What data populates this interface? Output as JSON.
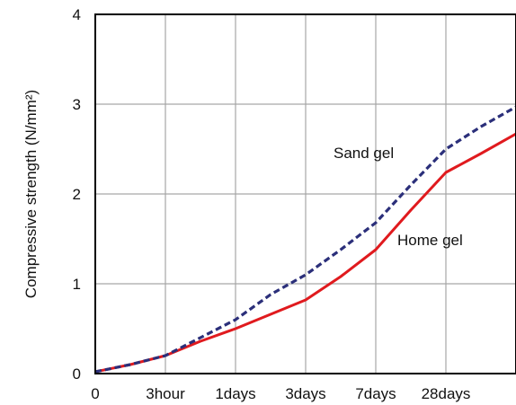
{
  "chart_data": {
    "type": "line",
    "title": "",
    "xlabel": "",
    "ylabel": "Compressive strength (N/mm²)",
    "x_ticks": [
      "0",
      "3hour",
      "1days",
      "3days",
      "7days",
      "28days",
      ""
    ],
    "y_ticks": [
      "0",
      "1",
      "2",
      "3",
      "4"
    ],
    "ylim": [
      0,
      4
    ],
    "grid": true,
    "series": [
      {
        "name": "Sand gel",
        "color": "#2b2f7a",
        "style": "dashed",
        "points": [
          {
            "x": 0,
            "y": 0.02
          },
          {
            "x": 0.5,
            "y": 0.1
          },
          {
            "x": 1,
            "y": 0.2
          },
          {
            "x": 1.5,
            "y": 0.4
          },
          {
            "x": 2,
            "y": 0.6
          },
          {
            "x": 2.5,
            "y": 0.88
          },
          {
            "x": 3,
            "y": 1.1
          },
          {
            "x": 3.5,
            "y": 1.38
          },
          {
            "x": 4,
            "y": 1.68
          },
          {
            "x": 4.5,
            "y": 2.1
          },
          {
            "x": 5,
            "y": 2.5
          },
          {
            "x": 5.5,
            "y": 2.75
          },
          {
            "x": 6,
            "y": 2.97
          }
        ]
      },
      {
        "name": "Home gel",
        "color": "#e01a1e",
        "style": "solid",
        "points": [
          {
            "x": 0,
            "y": 0.02
          },
          {
            "x": 0.5,
            "y": 0.1
          },
          {
            "x": 1,
            "y": 0.2
          },
          {
            "x": 1.5,
            "y": 0.36
          },
          {
            "x": 2,
            "y": 0.5
          },
          {
            "x": 2.5,
            "y": 0.66
          },
          {
            "x": 3,
            "y": 0.82
          },
          {
            "x": 3.5,
            "y": 1.08
          },
          {
            "x": 4,
            "y": 1.38
          },
          {
            "x": 4.5,
            "y": 1.82
          },
          {
            "x": 5,
            "y": 2.24
          },
          {
            "x": 5.5,
            "y": 2.45
          },
          {
            "x": 6,
            "y": 2.67
          }
        ]
      }
    ],
    "annotations": [
      {
        "text": "Sand gel",
        "series": "Sand gel"
      },
      {
        "text": "Home gel",
        "series": "Home gel"
      }
    ]
  }
}
